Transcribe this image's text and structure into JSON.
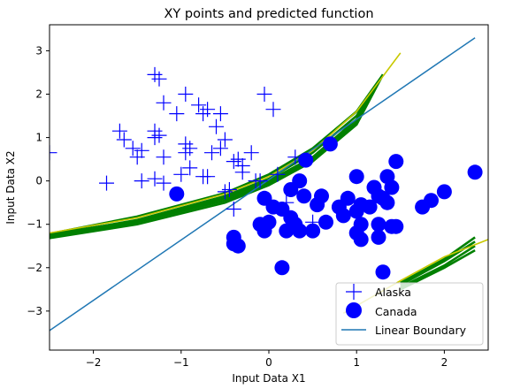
{
  "chart_data": {
    "type": "scatter",
    "title": "XY points and predicted function",
    "xlabel": "Input Data X1",
    "ylabel": "Input Data X2",
    "xlim": [
      -2.5,
      2.5
    ],
    "ylim": [
      -3.9,
      3.6
    ],
    "xticks": [
      -2,
      -1,
      0,
      1,
      2
    ],
    "yticks": [
      -3,
      -2,
      -1,
      0,
      1,
      2,
      3
    ],
    "xtick_labels": [
      "−2",
      "−1",
      "0",
      "1",
      "2"
    ],
    "ytick_labels": [
      "−3",
      "−2",
      "−1",
      "0",
      "1",
      "2",
      "3"
    ],
    "grid": false,
    "legend_position": "lower-right",
    "series": [
      {
        "name": "Alaska",
        "marker": "plus",
        "color": "#0000ff",
        "points": [
          [
            -1.3,
            2.45
          ],
          [
            -1.25,
            2.35
          ],
          [
            -0.95,
            2.0
          ],
          [
            -0.05,
            2.0
          ],
          [
            -1.2,
            1.8
          ],
          [
            0.05,
            1.65
          ],
          [
            -0.8,
            1.75
          ],
          [
            -0.7,
            1.65
          ],
          [
            -1.05,
            1.55
          ],
          [
            -0.75,
            1.55
          ],
          [
            -0.55,
            1.55
          ],
          [
            -0.6,
            1.25
          ],
          [
            -1.7,
            1.15
          ],
          [
            -1.3,
            1.15
          ],
          [
            -1.65,
            0.95
          ],
          [
            -1.3,
            1.0
          ],
          [
            -1.25,
            1.05
          ],
          [
            -0.95,
            0.85
          ],
          [
            -0.5,
            0.95
          ],
          [
            -0.55,
            0.75
          ],
          [
            -1.55,
            0.75
          ],
          [
            -1.45,
            0.7
          ],
          [
            -0.95,
            0.65
          ],
          [
            -0.9,
            0.75
          ],
          [
            -0.65,
            0.65
          ],
          [
            -0.4,
            0.45
          ],
          [
            -0.35,
            0.5
          ],
          [
            -0.2,
            0.65
          ],
          [
            -1.2,
            0.55
          ],
          [
            -0.9,
            0.3
          ],
          [
            -1.5,
            0.55
          ],
          [
            -0.3,
            0.35
          ],
          [
            -1.85,
            -0.05
          ],
          [
            -1.45,
            0.0
          ],
          [
            -1.3,
            0.05
          ],
          [
            -1.2,
            -0.05
          ],
          [
            -1.0,
            0.15
          ],
          [
            -0.75,
            0.1
          ],
          [
            -0.7,
            0.1
          ],
          [
            -0.45,
            -0.2
          ],
          [
            -0.5,
            -0.25
          ],
          [
            -0.3,
            0.2
          ],
          [
            -0.15,
            0.0
          ],
          [
            -0.1,
            0.0
          ],
          [
            0.1,
            0.15
          ],
          [
            0.3,
            0.55
          ],
          [
            -0.4,
            -0.65
          ],
          [
            0.2,
            -0.5
          ],
          [
            0.5,
            -0.95
          ],
          [
            -2.5,
            0.65
          ]
        ]
      },
      {
        "name": "Canada",
        "marker": "circle",
        "color": "#0000ff",
        "points": [
          [
            0.7,
            0.85
          ],
          [
            0.42,
            0.48
          ],
          [
            1.45,
            0.45
          ],
          [
            1.35,
            0.1
          ],
          [
            1.0,
            0.1
          ],
          [
            1.2,
            -0.15
          ],
          [
            1.4,
            -0.15
          ],
          [
            1.25,
            -0.35
          ],
          [
            1.3,
            -0.4
          ],
          [
            1.35,
            -0.5
          ],
          [
            1.15,
            -0.6
          ],
          [
            1.05,
            -0.55
          ],
          [
            1.0,
            -0.7
          ],
          [
            0.85,
            -0.8
          ],
          [
            0.8,
            -0.6
          ],
          [
            0.6,
            -0.35
          ],
          [
            0.4,
            -0.35
          ],
          [
            0.55,
            -0.55
          ],
          [
            0.25,
            -0.2
          ],
          [
            0.35,
            0.0
          ],
          [
            -0.05,
            -0.4
          ],
          [
            0.15,
            -0.65
          ],
          [
            0.05,
            -0.6
          ],
          [
            0.25,
            -0.85
          ],
          [
            0.3,
            -1.0
          ],
          [
            0.0,
            -0.95
          ],
          [
            -0.1,
            -1.0
          ],
          [
            -0.05,
            -1.15
          ],
          [
            0.2,
            -1.15
          ],
          [
            0.35,
            -1.15
          ],
          [
            0.5,
            -1.15
          ],
          [
            0.65,
            -0.95
          ],
          [
            1.05,
            -1.0
          ],
          [
            1.25,
            -1.0
          ],
          [
            1.4,
            -1.05
          ],
          [
            1.45,
            -1.05
          ],
          [
            1.25,
            -1.3
          ],
          [
            1.0,
            -1.2
          ],
          [
            1.05,
            -1.35
          ],
          [
            0.15,
            -2.0
          ],
          [
            -0.4,
            -1.3
          ],
          [
            -0.35,
            -1.5
          ],
          [
            -0.4,
            -1.45
          ],
          [
            -1.05,
            -0.3
          ],
          [
            1.75,
            -0.6
          ],
          [
            1.85,
            -0.45
          ],
          [
            2.0,
            -0.25
          ],
          [
            2.35,
            0.2
          ],
          [
            1.3,
            -2.1
          ],
          [
            0.9,
            -0.4
          ]
        ]
      },
      {
        "name": "Linear Boundary",
        "type": "line",
        "color": "#1f77b4",
        "points": [
          [
            -2.5,
            -3.45
          ],
          [
            2.35,
            3.3
          ]
        ]
      }
    ],
    "predicted_function": {
      "color_fit": "#008000",
      "color_final": "#c8c800",
      "upper_branch_final": [
        [
          -2.5,
          -1.2
        ],
        [
          -1.5,
          -0.85
        ],
        [
          -0.5,
          -0.3
        ],
        [
          0.0,
          0.1
        ],
        [
          0.5,
          0.7
        ],
        [
          1.0,
          1.6
        ],
        [
          1.5,
          2.95
        ]
      ],
      "lower_branch_final": [
        [
          0.85,
          -3.05
        ],
        [
          1.5,
          -2.3
        ],
        [
          2.0,
          -1.75
        ],
        [
          2.5,
          -1.35
        ]
      ],
      "upper_branch_fits": [
        [
          [
            -2.5,
            -1.3
          ],
          [
            -1.5,
            -0.95
          ],
          [
            -0.5,
            -0.45
          ],
          [
            0.0,
            -0.05
          ],
          [
            0.5,
            0.5
          ],
          [
            1.0,
            1.35
          ],
          [
            1.3,
            2.45
          ]
        ],
        [
          [
            -2.5,
            -1.25
          ],
          [
            -1.5,
            -0.9
          ],
          [
            -0.5,
            -0.35
          ],
          [
            0.0,
            0.05
          ],
          [
            0.5,
            0.65
          ],
          [
            1.0,
            1.5
          ],
          [
            1.3,
            2.45
          ]
        ],
        [
          [
            -2.5,
            -1.22
          ],
          [
            -1.5,
            -0.82
          ],
          [
            -0.5,
            -0.28
          ],
          [
            0.0,
            0.15
          ],
          [
            0.5,
            0.75
          ],
          [
            1.0,
            1.6
          ],
          [
            1.3,
            2.45
          ]
        ],
        [
          [
            -2.5,
            -1.32
          ],
          [
            -1.5,
            -1.0
          ],
          [
            -0.5,
            -0.5
          ],
          [
            0.0,
            -0.1
          ],
          [
            0.5,
            0.45
          ],
          [
            1.0,
            1.3
          ],
          [
            1.3,
            2.45
          ]
        ],
        [
          [
            -2.5,
            -1.27
          ],
          [
            -1.5,
            -0.92
          ],
          [
            -0.5,
            -0.4
          ],
          [
            0.0,
            0.0
          ],
          [
            0.5,
            0.55
          ],
          [
            1.0,
            1.42
          ],
          [
            1.3,
            2.45
          ]
        ]
      ],
      "lower_branch_fits": [
        [
          [
            1.5,
            -2.45
          ],
          [
            2.0,
            -1.95
          ],
          [
            2.35,
            -1.5
          ]
        ],
        [
          [
            1.5,
            -2.4
          ],
          [
            2.0,
            -1.85
          ],
          [
            2.35,
            -1.4
          ]
        ],
        [
          [
            1.5,
            -2.35
          ],
          [
            2.0,
            -1.8
          ],
          [
            2.35,
            -1.3
          ]
        ],
        [
          [
            1.5,
            -2.5
          ],
          [
            2.0,
            -2.0
          ],
          [
            2.35,
            -1.6
          ]
        ]
      ]
    }
  }
}
